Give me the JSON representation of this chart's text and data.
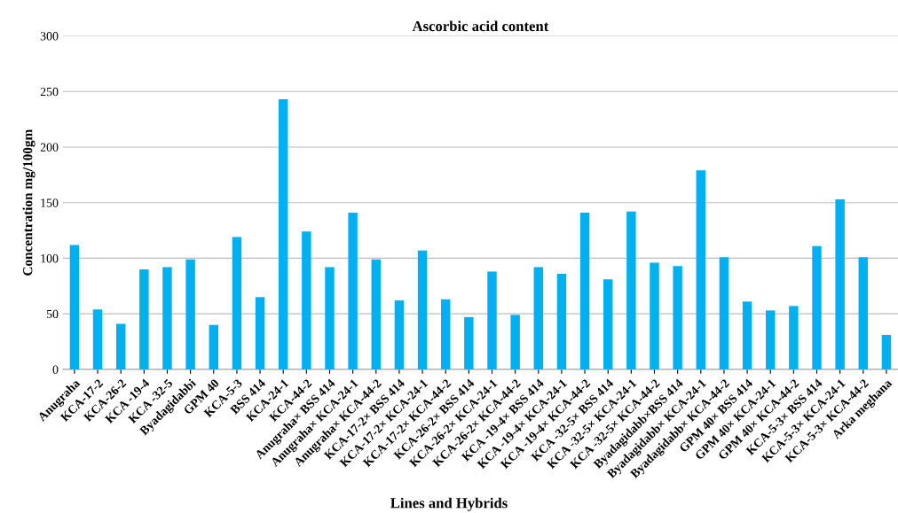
{
  "chart_data": {
    "type": "bar",
    "title": "Ascorbic acid content",
    "xlabel": "Lines and Hybrids",
    "ylabel": "Concentration mg/100gm",
    "categories": [
      "Anugraha",
      "KCA-17-2",
      "KCA-26-2",
      "KCA -19-4",
      "KCA -32-5",
      "Byadagidabbi",
      "GPM 40",
      "KCA-5-3",
      "BSS 414",
      "KCA-24-1",
      "KCA-44-2",
      "Anugraha× BSS 414",
      "Anugraha× KCA-24-1",
      "Anugraha× KCA-44-2",
      "KCA-17-2× BSS 414",
      "KCA-17-2× KCA-24-1",
      "KCA-17-2× KCA-44-2",
      "KCA-26-2× BSS 414",
      "KCA-26-2× KCA-24-1",
      "KCA-26-2× KCA-44-2",
      "KCA -19-4× BSS 414",
      "KCA -19-4× KCA-24-1",
      "KCA -19-4× KCA-44-2",
      "KCA -32-5× BSS 414",
      "KCA -32-5× KCA-24-1",
      "KCA -32-5× KCA-44-2",
      "Byadagidabb×BSS 414",
      "Byadagidabb× KCA-24-1",
      "Byadagidabb× KCA-44-2",
      "GPM 40× BSS 414",
      "GPM 40× KCA-24-1",
      "GPM 40× KCA-44-2",
      "KCA-5-3× BSS 414",
      "KCA-5-3× KCA-24-1",
      "KCA-5-3× KCA-44-2",
      "Arka meghana"
    ],
    "values": [
      112,
      54,
      41,
      90,
      92,
      99,
      40,
      119,
      65,
      243,
      124,
      92,
      141,
      99,
      62,
      107,
      63,
      47,
      88,
      49,
      92,
      86,
      141,
      81,
      142,
      96,
      93,
      179,
      101,
      61,
      53,
      57,
      111,
      153,
      101,
      31
    ],
    "color": "#00b0f0",
    "ylim": [
      0,
      300
    ],
    "yticks": [
      0,
      50,
      100,
      150,
      200,
      250,
      300
    ],
    "grid": "y",
    "legend": false
  }
}
